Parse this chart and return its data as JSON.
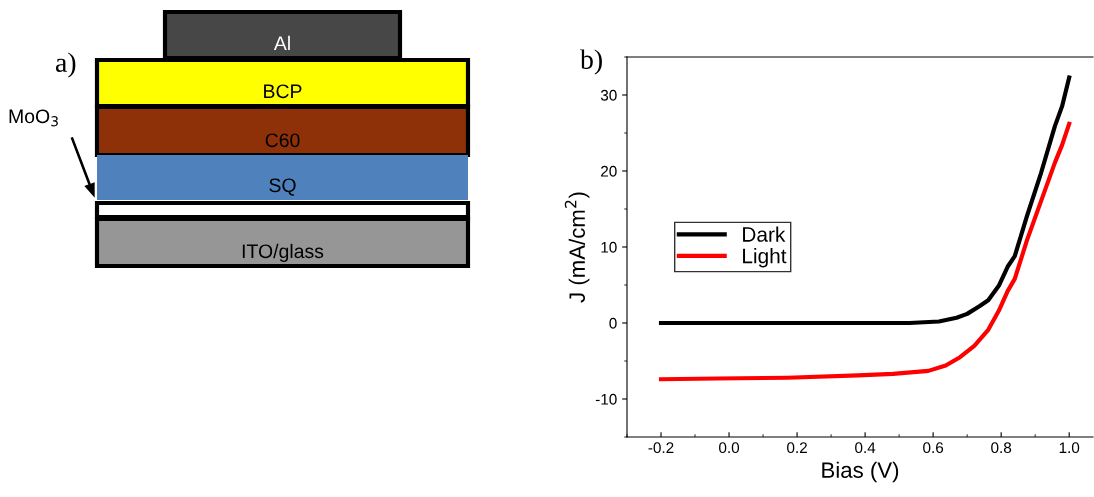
{
  "chart_data": [
    {
      "type": "other",
      "annotations": [
        "a)",
        "Al",
        "BCP",
        "C60",
        "SQ",
        "ITO/glass",
        "MoO$_{3}$"
      ]
    },
    {
      "type": "line",
      "title": "b)",
      "xlabel": "Bias (V)",
      "ylabel": "J (mA/cm$^{2}$)",
      "xlim": [
        -0.3,
        1.07
      ],
      "ylim": [
        -15,
        35
      ],
      "xticks": [
        {
          "value": -0.2,
          "label": "-0.2"
        },
        {
          "value": 0,
          "label": "0.0"
        },
        {
          "value": 0.2,
          "label": "0.2"
        },
        {
          "value": 0.4,
          "label": "0.4"
        },
        {
          "value": 0.6,
          "label": "0.6"
        },
        {
          "value": 0.8,
          "label": "0.8"
        },
        {
          "value": 1.0,
          "label": "1.0"
        }
      ],
      "yticks": [
        -10,
        0,
        10,
        20,
        30
      ],
      "legend": "left",
      "grid": false,
      "marker": "none",
      "line_style": "solid",
      "series": [
        {
          "name": "Dark",
          "color": "#000000",
          "x": [
            -0.2,
            0.0,
            0.2,
            0.4,
            0.53,
            0.617,
            0.669,
            0.7,
            0.736,
            0.762,
            0.793,
            0.819,
            0.84,
            0.876,
            0.917,
            0.958,
            0.979,
            1.0
          ],
          "values": [
            0,
            0,
            0,
            0,
            0,
            0.2,
            0.7,
            1.2,
            2.2,
            3.0,
            4.9,
            7.4,
            8.8,
            14.1,
            19.7,
            25.9,
            28.5,
            32.3
          ]
        },
        {
          "name": "Light",
          "color": "#ff0000",
          "x": [
            -0.2,
            -0.035,
            0.172,
            0.379,
            0.482,
            0.586,
            0.637,
            0.679,
            0.721,
            0.762,
            0.793,
            0.819,
            0.84,
            0.876,
            0.917,
            0.958,
            0.979,
            1.0
          ],
          "values": [
            -7.4,
            -7.3,
            -7.2,
            -6.9,
            -6.7,
            -6.3,
            -5.6,
            -4.5,
            -3.0,
            -0.9,
            1.6,
            4.2,
            5.8,
            10.9,
            16.0,
            21.1,
            23.4,
            26.2
          ]
        }
      ]
    }
  ]
}
